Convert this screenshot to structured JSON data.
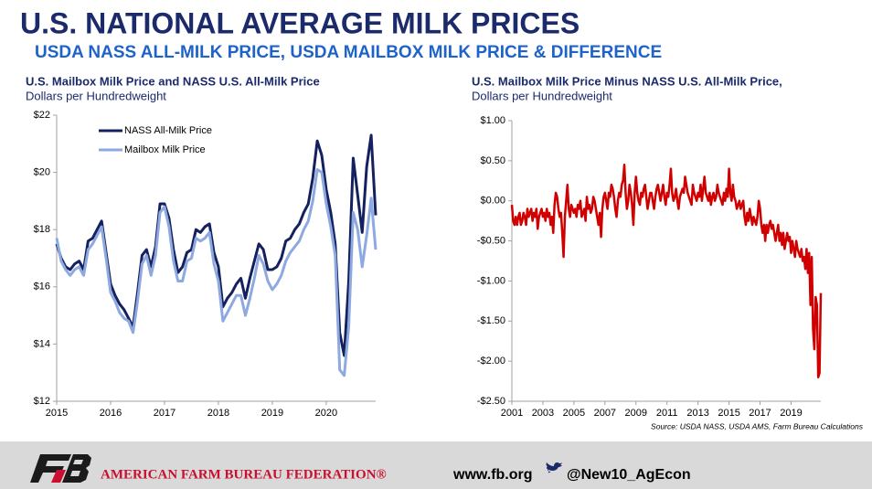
{
  "header": {
    "title": "U.S. NATIONAL AVERAGE MILK PRICES",
    "subtitle": "USDA NASS ALL-MILK PRICE, USDA MAILBOX MILK PRICE & DIFFERENCE"
  },
  "chart_data": [
    {
      "type": "line",
      "title": "U.S. Mailbox Milk Price and NASS U.S. All-Milk Price",
      "subtitle": "Dollars per Hundredweight",
      "categories": [
        "2015",
        null,
        null,
        null,
        null,
        null,
        null,
        null,
        null,
        null,
        null,
        null,
        "2016",
        null,
        null,
        null,
        null,
        null,
        null,
        null,
        null,
        null,
        null,
        null,
        "2017",
        null,
        null,
        null,
        null,
        null,
        null,
        null,
        null,
        null,
        null,
        null,
        "2018",
        null,
        null,
        null,
        null,
        null,
        null,
        null,
        null,
        null,
        null,
        null,
        "2019",
        null,
        null,
        null,
        null,
        null,
        null,
        null,
        null,
        null,
        null,
        null,
        "2020",
        null,
        null,
        null,
        null,
        null,
        null,
        null,
        null,
        null,
        null,
        null
      ],
      "series": [
        {
          "name": "NASS All-Milk Price",
          "color": "#14215e",
          "values": [
            17.5,
            17.0,
            16.7,
            16.6,
            16.8,
            16.9,
            16.6,
            17.6,
            17.7,
            18.0,
            18.3,
            17.2,
            16.1,
            15.7,
            15.4,
            15.2,
            14.9,
            14.6,
            15.8,
            17.1,
            17.3,
            16.7,
            17.4,
            18.9,
            18.9,
            18.4,
            17.3,
            16.5,
            16.7,
            17.2,
            17.3,
            18.0,
            17.9,
            18.1,
            18.2,
            17.2,
            16.7,
            15.3,
            15.6,
            15.8,
            16.1,
            16.3,
            15.6,
            16.3,
            16.9,
            17.5,
            17.3,
            16.6,
            16.6,
            16.7,
            17.0,
            17.6,
            17.7,
            18.0,
            18.2,
            18.6,
            18.9,
            19.8,
            21.1,
            20.6,
            19.4,
            18.6,
            17.5,
            14.4,
            13.6,
            16.2,
            20.5,
            19.2,
            17.9,
            20.2,
            21.3,
            18.5
          ]
        },
        {
          "name": "Mailbox Milk Price",
          "color": "#8da9e0",
          "values": [
            17.7,
            16.9,
            16.6,
            16.4,
            16.6,
            16.7,
            16.4,
            17.3,
            17.5,
            17.8,
            18.1,
            17.0,
            15.8,
            15.5,
            15.1,
            14.9,
            14.8,
            14.4,
            15.5,
            16.8,
            17.1,
            16.4,
            17.1,
            18.6,
            18.8,
            18.1,
            16.9,
            16.2,
            16.2,
            16.9,
            17.0,
            17.7,
            17.6,
            17.7,
            17.9,
            16.8,
            16.2,
            14.8,
            15.1,
            15.4,
            15.7,
            15.7,
            15.0,
            15.6,
            16.3,
            17.1,
            16.8,
            16.2,
            15.9,
            16.1,
            16.4,
            16.9,
            17.2,
            17.4,
            17.6,
            18.0,
            18.3,
            19.0,
            20.1,
            20.0,
            18.9,
            18.1,
            17.1,
            13.1,
            12.9,
            14.6,
            18.6,
            18.0,
            16.7,
            17.8,
            19.1,
            17.3
          ]
        }
      ],
      "ylim": [
        12,
        22
      ],
      "yticks": [
        {
          "value": 12,
          "label": "$12"
        },
        {
          "value": 14,
          "label": "$14"
        },
        {
          "value": 16,
          "label": "$16"
        },
        {
          "value": 18,
          "label": "$18"
        },
        {
          "value": 20,
          "label": "$20"
        },
        {
          "value": 22,
          "label": "$22"
        }
      ],
      "legend": "upper left"
    },
    {
      "type": "line",
      "title": "U.S. Mailbox Milk Price Minus NASS U.S. All-Milk Price,",
      "subtitle": "Dollars per Hundredweight",
      "categories": [
        "2001",
        null,
        null,
        null,
        null,
        null,
        null,
        null,
        null,
        null,
        null,
        null,
        null,
        null,
        null,
        null,
        null,
        null,
        null,
        null,
        null,
        null,
        null,
        null,
        "2003",
        null,
        null,
        null,
        null,
        null,
        null,
        null,
        null,
        null,
        null,
        null,
        null,
        null,
        null,
        null,
        null,
        null,
        null,
        null,
        null,
        null,
        null,
        null,
        "2005",
        null,
        null,
        null,
        null,
        null,
        null,
        null,
        null,
        null,
        null,
        null,
        null,
        null,
        null,
        null,
        null,
        null,
        null,
        null,
        null,
        null,
        null,
        null,
        "2007",
        null,
        null,
        null,
        null,
        null,
        null,
        null,
        null,
        null,
        null,
        null,
        null,
        null,
        null,
        null,
        null,
        null,
        null,
        null,
        null,
        null,
        null,
        null,
        "2009",
        null,
        null,
        null,
        null,
        null,
        null,
        null,
        null,
        null,
        null,
        null,
        null,
        null,
        null,
        null,
        null,
        null,
        null,
        null,
        null,
        null,
        null,
        null,
        "2011",
        null,
        null,
        null,
        null,
        null,
        null,
        null,
        null,
        null,
        null,
        null,
        null,
        null,
        null,
        null,
        null,
        null,
        null,
        null,
        null,
        null,
        null,
        null,
        "2013",
        null,
        null,
        null,
        null,
        null,
        null,
        null,
        null,
        null,
        null,
        null,
        null,
        null,
        null,
        null,
        null,
        null,
        null,
        null,
        null,
        null,
        null,
        null,
        "2015",
        null,
        null,
        null,
        null,
        null,
        null,
        null,
        null,
        null,
        null,
        null,
        null,
        null,
        null,
        null,
        null,
        null,
        null,
        null,
        null,
        null,
        null,
        null,
        "2017",
        null,
        null,
        null,
        null,
        null,
        null,
        null,
        null,
        null,
        null,
        null,
        null,
        null,
        null,
        null,
        null,
        null,
        null,
        null,
        null,
        null,
        null,
        null,
        "2019",
        null,
        null,
        null,
        null,
        null,
        null,
        null,
        null,
        null,
        null,
        null,
        null,
        null,
        null,
        null,
        null,
        null,
        null,
        null,
        null,
        null,
        null,
        null
      ],
      "color": "#d00000",
      "values": [
        -0.05,
        -0.25,
        -0.3,
        -0.2,
        -0.3,
        -0.2,
        -0.15,
        -0.3,
        -0.25,
        -0.15,
        -0.2,
        -0.3,
        -0.1,
        -0.2,
        -0.15,
        -0.1,
        -0.25,
        -0.15,
        -0.2,
        -0.1,
        -0.35,
        -0.2,
        -0.15,
        -0.1,
        -0.2,
        -0.15,
        -0.25,
        -0.1,
        -0.2,
        -0.15,
        -0.3,
        -0.2,
        -0.4,
        -0.05,
        0.1,
        0.05,
        -0.1,
        -0.2,
        -0.15,
        -0.4,
        -0.7,
        -0.2,
        0.0,
        0.2,
        -0.1,
        -0.2,
        -0.05,
        -0.1,
        -0.15,
        -0.1,
        -0.2,
        -0.05,
        -0.1,
        0.0,
        -0.2,
        -0.15,
        -0.1,
        -0.25,
        0.05,
        -0.1,
        -0.05,
        -0.15,
        -0.1,
        0.05,
        0.0,
        -0.1,
        -0.2,
        -0.3,
        -0.15,
        -0.45,
        -0.1,
        0.05,
        0.1,
        0.0,
        -0.1,
        0.1,
        0.05,
        0.2,
        0.15,
        0.05,
        -0.1,
        -0.2,
        0.0,
        0.1,
        0.05,
        0.2,
        0.25,
        0.45,
        0.1,
        -0.1,
        0.0,
        0.2,
        0.1,
        -0.05,
        -0.3,
        0.1,
        0.3,
        0.1,
        0.0,
        -0.05,
        0.1,
        0.05,
        0.15,
        0.2,
        0.05,
        -0.1,
        0.0,
        0.1,
        0.1,
        0.0,
        -0.1,
        0.05,
        0.15,
        0.2,
        0.1,
        0.0,
        0.1,
        0.2,
        0.05,
        -0.05,
        0.1,
        0.05,
        0.2,
        0.4,
        0.1,
        0.0,
        0.05,
        0.15,
        0.0,
        -0.1,
        0.05,
        0.1,
        0.15,
        0.1,
        0.3,
        0.2,
        0.1,
        0.05,
        0.0,
        -0.05,
        0.2,
        0.1,
        0.05,
        0.0,
        0.1,
        0.05,
        0.2,
        0.0,
        0.15,
        0.3,
        0.1,
        0.05,
        0.0,
        0.1,
        -0.05,
        0.05,
        0.1,
        0.0,
        0.05,
        0.2,
        0.1,
        0.05,
        0.0,
        -0.05,
        0.1,
        0.0,
        0.15,
        0.05,
        0.4,
        0.1,
        0.0,
        0.2,
        0.05,
        0.0,
        -0.1,
        -0.05,
        0.0,
        -0.1,
        -0.05,
        0.0,
        -0.2,
        -0.3,
        -0.15,
        -0.25,
        -0.1,
        -0.2,
        -0.3,
        -0.2,
        -0.25,
        -0.3,
        -0.2,
        0.0,
        -0.1,
        -0.3,
        -0.4,
        -0.3,
        -0.5,
        -0.3,
        -0.4,
        -0.3,
        -0.25,
        -0.35,
        -0.3,
        -0.4,
        -0.5,
        -0.4,
        -0.3,
        -0.5,
        -0.4,
        -0.55,
        -0.4,
        -0.6,
        -0.5,
        -0.4,
        -0.5,
        -0.45,
        -0.65,
        -0.5,
        -0.6,
        -0.7,
        -0.5,
        -0.6,
        -0.65,
        -0.7,
        -0.6,
        -0.75,
        -0.7,
        -0.85,
        -0.6,
        -0.9,
        -0.65,
        -1.3,
        -0.7,
        -1.6,
        -1.85,
        -1.2,
        -1.3,
        -2.2,
        -2.15,
        -1.15
      ],
      "ylim": [
        -2.5,
        1
      ],
      "yticks": [
        {
          "value": -2.5,
          "label": "-$2.50"
        },
        {
          "value": -2,
          "label": "-$2.00"
        },
        {
          "value": -1.5,
          "label": "-$1.50"
        },
        {
          "value": -1,
          "label": "-$1.00"
        },
        {
          "value": -0.5,
          "label": "-$0.50"
        },
        {
          "value": 0,
          "label": "$0.00"
        },
        {
          "value": 0.5,
          "label": "$0.50"
        },
        {
          "value": 1,
          "label": "$1.00"
        }
      ],
      "source": "Source: USDA NASS, USDA AMS, Farm Bureau Calculations"
    }
  ],
  "footer": {
    "organization": "AMERICAN FARM BUREAU FEDERATION®",
    "website": "www.fb.org",
    "twitter": "@New10_AgEcon"
  }
}
